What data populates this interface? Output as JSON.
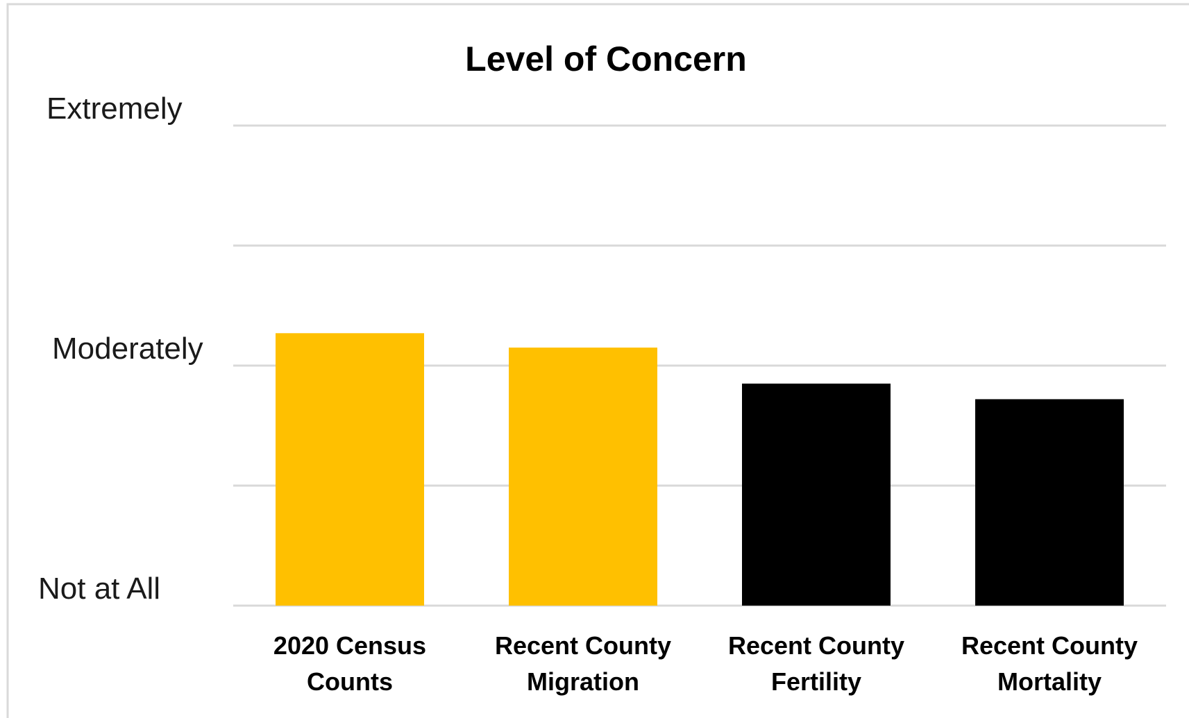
{
  "chart_data": {
    "type": "bar",
    "title": "Level of Concern",
    "xlabel": "",
    "ylabel": "",
    "categories": [
      [
        "2020 Census",
        "Counts"
      ],
      [
        "Recent County",
        "Migration"
      ],
      [
        "Recent County",
        "Fertility"
      ],
      [
        "Recent County",
        "Mortality"
      ]
    ],
    "values": [
      2.27,
      2.15,
      1.85,
      1.72
    ],
    "bar_colors": [
      "#FFC000",
      "#FFC000",
      "#000000",
      "#000000"
    ],
    "ylim": [
      0,
      4
    ],
    "yticks": [
      0,
      1,
      2,
      3,
      4
    ],
    "ytick_labels": {
      "0": "Not at All",
      "2": "Moderately",
      "4": "Extremely"
    },
    "grid": true,
    "legend": "none"
  },
  "colors": {
    "gridline": "#d9d9d9",
    "frame": "#d9d9d9",
    "background": "#ffffff"
  }
}
